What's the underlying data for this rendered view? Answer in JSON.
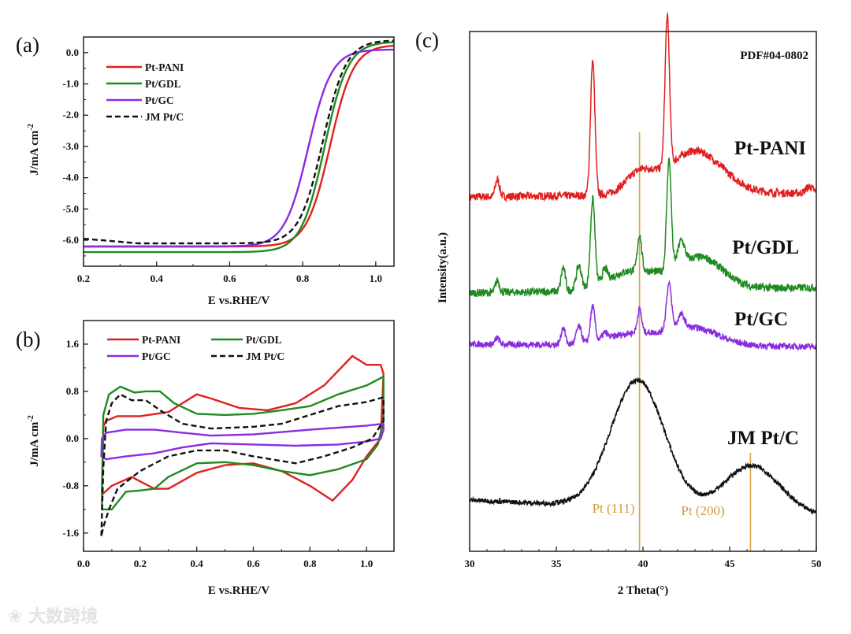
{
  "colors": {
    "pt_pani": "#e02020",
    "pt_gdl": "#1f8a1f",
    "pt_gc": "#8a2be2",
    "jm_ptc": "#111111",
    "ref_line": "#d9a441"
  },
  "watermark": "大数跨境",
  "chart_data": [
    {
      "panel_label": "(a)",
      "type": "line",
      "xlabel": "E vs.RHE/V",
      "ylabel": "J/mA cm",
      "ylabel_sup": "-2",
      "xlim": [
        0.2,
        1.05
      ],
      "ylim": [
        -6.83,
        0.5
      ],
      "xticks": [
        "0.2",
        "0.4",
        "0.6",
        "0.8",
        "1.0"
      ],
      "yticks": [
        "0.0",
        "-1.0",
        "-2.0",
        "-3.0",
        "-4.0",
        "-5.0",
        "-6.0"
      ],
      "legend": "top-left",
      "series": [
        {
          "name": "Pt-PANI",
          "color_key": "pt_pani",
          "dash": false,
          "half_wave_potential": 0.875,
          "limiting_current": -6.2,
          "onset_current": 0.25
        },
        {
          "name": "Pt/GDL",
          "color_key": "pt_gdl",
          "dash": false,
          "half_wave_potential": 0.86,
          "limiting_current": -6.38,
          "onset_current": 0.35
        },
        {
          "name": "Pt/GC",
          "color_key": "pt_gc",
          "dash": false,
          "half_wave_potential": 0.815,
          "limiting_current": -6.2,
          "onset_current": 0.1
        },
        {
          "name": "JM Pt/C",
          "color_key": "jm_ptc",
          "dash": true,
          "half_wave_potential": 0.855,
          "limiting_current": -6.1,
          "onset_current": 0.4
        }
      ]
    },
    {
      "panel_label": "(b)",
      "type": "line",
      "xlabel": "E vs.RHE/V",
      "ylabel": "J/mA cm",
      "ylabel_sup": "-2",
      "xlim": [
        0.0,
        1.097
      ],
      "ylim": [
        -1.91,
        2.0
      ],
      "xticks": [
        "0.0",
        "0.2",
        "0.4",
        "0.6",
        "0.8",
        "1.0"
      ],
      "yticks": [
        "1.6",
        "0.8",
        "0.0",
        "-0.8",
        "-1.6"
      ],
      "legend": "top",
      "series": [
        {
          "name": "Pt-PANI",
          "color_key": "pt_pani",
          "dash": false,
          "points": [
            [
              0.065,
              -0.9
            ],
            [
              0.07,
              0.2
            ],
            [
              0.08,
              0.3
            ],
            [
              0.12,
              0.38
            ],
            [
              0.2,
              0.38
            ],
            [
              0.3,
              0.45
            ],
            [
              0.35,
              0.6
            ],
            [
              0.4,
              0.75
            ],
            [
              0.45,
              0.68
            ],
            [
              0.55,
              0.52
            ],
            [
              0.65,
              0.48
            ],
            [
              0.75,
              0.6
            ],
            [
              0.85,
              0.9
            ],
            [
              0.95,
              1.4
            ],
            [
              1.0,
              1.25
            ],
            [
              1.05,
              1.25
            ],
            [
              1.06,
              1.1
            ],
            [
              1.05,
              0.0
            ],
            [
              1.0,
              -0.3
            ],
            [
              0.95,
              -0.7
            ],
            [
              0.88,
              -1.05
            ],
            [
              0.8,
              -0.8
            ],
            [
              0.7,
              -0.55
            ],
            [
              0.6,
              -0.42
            ],
            [
              0.5,
              -0.45
            ],
            [
              0.4,
              -0.58
            ],
            [
              0.3,
              -0.85
            ],
            [
              0.25,
              -0.85
            ],
            [
              0.17,
              -0.65
            ],
            [
              0.1,
              -0.8
            ],
            [
              0.065,
              -0.95
            ]
          ]
        },
        {
          "name": "Pt/GDL",
          "color_key": "pt_gdl",
          "dash": false,
          "points": [
            [
              0.065,
              -1.2
            ],
            [
              0.07,
              0.4
            ],
            [
              0.09,
              0.75
            ],
            [
              0.13,
              0.88
            ],
            [
              0.18,
              0.78
            ],
            [
              0.22,
              0.8
            ],
            [
              0.27,
              0.8
            ],
            [
              0.32,
              0.6
            ],
            [
              0.4,
              0.42
            ],
            [
              0.5,
              0.4
            ],
            [
              0.6,
              0.42
            ],
            [
              0.7,
              0.48
            ],
            [
              0.8,
              0.55
            ],
            [
              0.9,
              0.75
            ],
            [
              1.0,
              0.9
            ],
            [
              1.06,
              1.05
            ],
            [
              1.06,
              0.3
            ],
            [
              1.04,
              -0.1
            ],
            [
              1.0,
              -0.35
            ],
            [
              0.9,
              -0.52
            ],
            [
              0.8,
              -0.62
            ],
            [
              0.7,
              -0.55
            ],
            [
              0.6,
              -0.45
            ],
            [
              0.5,
              -0.4
            ],
            [
              0.4,
              -0.42
            ],
            [
              0.3,
              -0.65
            ],
            [
              0.25,
              -0.85
            ],
            [
              0.2,
              -0.88
            ],
            [
              0.15,
              -0.9
            ],
            [
              0.1,
              -1.2
            ],
            [
              0.07,
              -1.2
            ]
          ]
        },
        {
          "name": "Pt/GC",
          "color_key": "pt_gc",
          "dash": false,
          "points": [
            [
              0.063,
              -0.3
            ],
            [
              0.065,
              0.0
            ],
            [
              0.08,
              0.1
            ],
            [
              0.15,
              0.15
            ],
            [
              0.25,
              0.15
            ],
            [
              0.35,
              0.1
            ],
            [
              0.45,
              0.05
            ],
            [
              0.6,
              0.07
            ],
            [
              0.8,
              0.15
            ],
            [
              1.0,
              0.22
            ],
            [
              1.06,
              0.25
            ],
            [
              1.06,
              0.15
            ],
            [
              1.05,
              0.0
            ],
            [
              1.0,
              -0.05
            ],
            [
              0.9,
              -0.1
            ],
            [
              0.75,
              -0.12
            ],
            [
              0.6,
              -0.1
            ],
            [
              0.45,
              -0.08
            ],
            [
              0.35,
              -0.15
            ],
            [
              0.25,
              -0.25
            ],
            [
              0.15,
              -0.3
            ],
            [
              0.08,
              -0.35
            ],
            [
              0.063,
              -0.3
            ]
          ]
        },
        {
          "name": "JM Pt/C",
          "color_key": "jm_ptc",
          "dash": true,
          "points": [
            [
              0.063,
              -1.65
            ],
            [
              0.07,
              -0.5
            ],
            [
              0.08,
              0.3
            ],
            [
              0.1,
              0.6
            ],
            [
              0.13,
              0.75
            ],
            [
              0.17,
              0.65
            ],
            [
              0.22,
              0.65
            ],
            [
              0.28,
              0.45
            ],
            [
              0.35,
              0.25
            ],
            [
              0.45,
              0.17
            ],
            [
              0.6,
              0.2
            ],
            [
              0.7,
              0.25
            ],
            [
              0.8,
              0.4
            ],
            [
              0.9,
              0.55
            ],
            [
              1.0,
              0.62
            ],
            [
              1.06,
              0.7
            ],
            [
              1.06,
              0.3
            ],
            [
              1.02,
              0.0
            ],
            [
              0.95,
              -0.15
            ],
            [
              0.85,
              -0.3
            ],
            [
              0.75,
              -0.42
            ],
            [
              0.6,
              -0.3
            ],
            [
              0.5,
              -0.2
            ],
            [
              0.4,
              -0.2
            ],
            [
              0.3,
              -0.3
            ],
            [
              0.2,
              -0.55
            ],
            [
              0.12,
              -0.85
            ],
            [
              0.09,
              -1.2
            ],
            [
              0.07,
              -1.5
            ],
            [
              0.063,
              -1.65
            ]
          ]
        }
      ]
    },
    {
      "panel_label": "(c)",
      "type": "line",
      "xlabel": "2 Theta(°)",
      "ylabel": "Intensity(a.u.)",
      "xlim": [
        30,
        50
      ],
      "ylim": [
        0,
        660
      ],
      "xticks": [
        "30",
        "35",
        "40",
        "45",
        "50"
      ],
      "reference_card": "PDF#04-0802",
      "reference_lines": [
        {
          "label": "Pt (111)",
          "x": 39.8,
          "top_intensity": 532
        },
        {
          "label": "Pt (200)",
          "x": 46.2,
          "top_intensity": 125
        }
      ],
      "series": [
        {
          "name": "Pt-PANI",
          "color_key": "pt_pani",
          "baseline": [
            450,
            455
          ],
          "peaks": [
            [
              31.6,
              22,
              0.12
            ],
            [
              37.1,
              170,
              0.13
            ],
            [
              41.4,
              190,
              0.13
            ],
            [
              39.8,
              25,
              0.8
            ],
            [
              43.0,
              55,
              1.6
            ],
            [
              49.6,
              8,
              0.2
            ]
          ],
          "noise": 5
        },
        {
          "name": "Pt/GDL",
          "color_key": "pt_gdl",
          "baseline": [
            328,
            335
          ],
          "peaks": [
            [
              31.6,
              15,
              0.12
            ],
            [
              35.4,
              30,
              0.12
            ],
            [
              36.3,
              30,
              0.15
            ],
            [
              37.1,
              110,
              0.13
            ],
            [
              37.8,
              15,
              0.15
            ],
            [
              39.8,
              45,
              0.12
            ],
            [
              41.5,
              140,
              0.13
            ],
            [
              42.2,
              30,
              0.2
            ],
            [
              39.5,
              25,
              1.5
            ],
            [
              43.3,
              40,
              1.3
            ]
          ],
          "noise": 5
        },
        {
          "name": "Pt/GC",
          "color_key": "pt_gc",
          "baseline": [
            263,
            260
          ],
          "peaks": [
            [
              31.6,
              8,
              0.12
            ],
            [
              35.4,
              22,
              0.12
            ],
            [
              36.3,
              22,
              0.15
            ],
            [
              37.1,
              45,
              0.13
            ],
            [
              37.8,
              8,
              0.15
            ],
            [
              39.8,
              30,
              0.12
            ],
            [
              41.5,
              60,
              0.15
            ],
            [
              42.2,
              18,
              0.2
            ],
            [
              39.5,
              15,
              1.5
            ],
            [
              43.0,
              22,
              1.4
            ]
          ],
          "noise": 4
        },
        {
          "name": "JM Pt/C",
          "color_key": "jm_ptc",
          "baseline": [
            65,
            45
          ],
          "peaks": [
            [
              39.7,
              162,
              1.55
            ],
            [
              46.3,
              60,
              1.6
            ]
          ],
          "noise": 3
        }
      ]
    }
  ]
}
